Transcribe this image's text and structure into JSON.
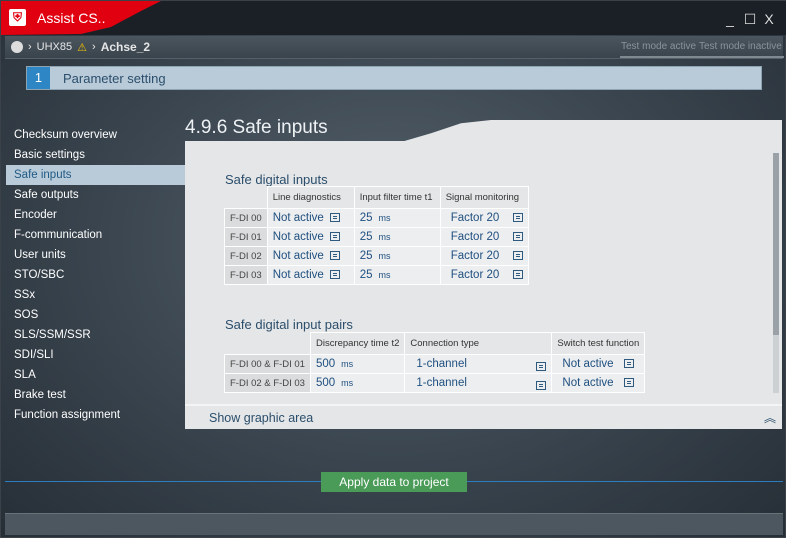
{
  "window": {
    "title": "Assist CS..",
    "logo": "shield-logo",
    "controls": [
      "_",
      "☐",
      "X"
    ]
  },
  "breadcrumb": {
    "device": "UHX85",
    "axis": "Achse_2",
    "warning_icon": "warning-icon"
  },
  "test_mode": {
    "active": "Test mode active",
    "inactive": "Test mode inactive"
  },
  "step": {
    "number": "1",
    "label": "Parameter setting"
  },
  "sidebar": {
    "selected": "Safe inputs",
    "items": [
      "Checksum overview",
      "Basic settings",
      "Safe inputs",
      "Safe outputs",
      "Encoder",
      "F-communication",
      "User units",
      "STO/SBC",
      "SSx",
      "SOS",
      "SLS/SSM/SSR",
      "SDI/SLI",
      "SLA",
      "Brake test",
      "Function assignment"
    ]
  },
  "page": {
    "title": "4.9.6 Safe inputs"
  },
  "inputs": {
    "title": "Safe digital inputs",
    "headers": [
      "Line diagnostics",
      "Input filter time t1",
      "Signal monitoring"
    ],
    "rows": [
      {
        "label": "F-DI 00",
        "line": "Not active",
        "filter": "25",
        "unit": "ms",
        "signal": "Factor 20"
      },
      {
        "label": "F-DI 01",
        "line": "Not active",
        "filter": "25",
        "unit": "ms",
        "signal": "Factor 20"
      },
      {
        "label": "F-DI 02",
        "line": "Not active",
        "filter": "25",
        "unit": "ms",
        "signal": "Factor 20"
      },
      {
        "label": "F-DI 03",
        "line": "Not active",
        "filter": "25",
        "unit": "ms",
        "signal": "Factor 20"
      }
    ]
  },
  "pairs": {
    "title": "Safe digital input pairs",
    "headers": [
      "Discrepancy time t2",
      "Connection type",
      "Switch test function"
    ],
    "rows": [
      {
        "label": "F-DI 00 & F-DI 01",
        "disc": "500",
        "unit": "ms",
        "conn": "1-channel",
        "switch": "Not active"
      },
      {
        "label": "F-DI 02 & F-DI 03",
        "disc": "500",
        "unit": "ms",
        "conn": "1-channel",
        "switch": "Not active"
      }
    ]
  },
  "graphic": {
    "label": "Show graphic area",
    "icon": "double-chevron-up-icon"
  },
  "footer": {
    "apply_label": "Apply data to project",
    "accent": "#2b7dbf",
    "button_color": "#4a9a58"
  }
}
